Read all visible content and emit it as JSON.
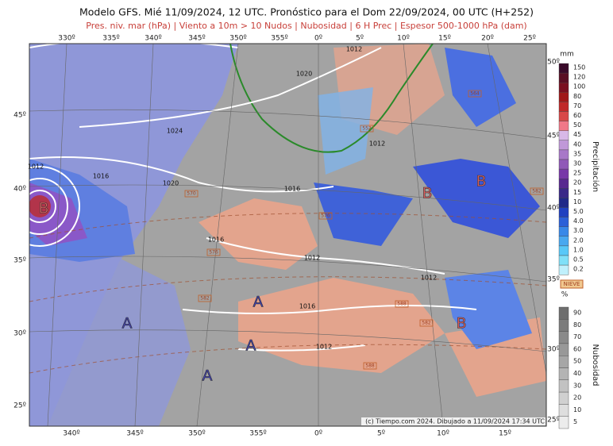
{
  "header": {
    "title": "Modelo GFS. Mié 11/09/2024, 12 UTC. Pronóstico para el Dom 22/09/2024, 00 UTC (H+252)",
    "subtitle": "Pres. niv. mar (hPa) | Viento a 10m > 10 Nudos | Nubosidad | 6 H Prec | Espesor 500-1000 hPa (dam)"
  },
  "axes": {
    "top_lon": [
      "330º",
      "335º",
      "340º",
      "345º",
      "350º",
      "355º",
      "0º",
      "5º",
      "10º",
      "15º",
      "20º",
      "25º"
    ],
    "bottom_lon": [
      "340º",
      "345º",
      "350º",
      "355º",
      "0º",
      "5º",
      "10º",
      "15º"
    ],
    "left_lat": [
      "45º",
      "40º",
      "35º",
      "30º",
      "25º"
    ],
    "right_lat": [
      "50º",
      "45º",
      "40º",
      "35º",
      "30º",
      "25º"
    ]
  },
  "map": {
    "isobar_labels": [
      "1012",
      "1020",
      "1024",
      "1012",
      "1012",
      "1016",
      "1020",
      "1016",
      "1016",
      "1012",
      "1012",
      "1016",
      "1012"
    ],
    "pressure_centers": [
      "B",
      "B",
      "B",
      "B",
      "A",
      "A",
      "A",
      "A"
    ],
    "thickness_labels": [
      "552",
      "564",
      "570",
      "576",
      "576",
      "582",
      "588",
      "582",
      "588",
      "582"
    ]
  },
  "legend": {
    "precip": {
      "unit": "mm",
      "title": "Precipitación",
      "values": [
        "150",
        "120",
        "100",
        "80",
        "70",
        "60",
        "50",
        "45",
        "40",
        "35",
        "30",
        "25",
        "20",
        "15",
        "10",
        "5.0",
        "4.0",
        "3.0",
        "2.0",
        "1.0",
        "0.5",
        "0.2"
      ]
    },
    "snow": "NIEVE",
    "cloud": {
      "unit": "%",
      "title": "Nubosidad",
      "values": [
        "90",
        "80",
        "70",
        "60",
        "50",
        "40",
        "30",
        "20",
        "10",
        "5"
      ]
    }
  },
  "footer": {
    "credit": "(c) Tiempo.com 2024. Dibujado a 11/09/2024 17:34 UTC"
  }
}
